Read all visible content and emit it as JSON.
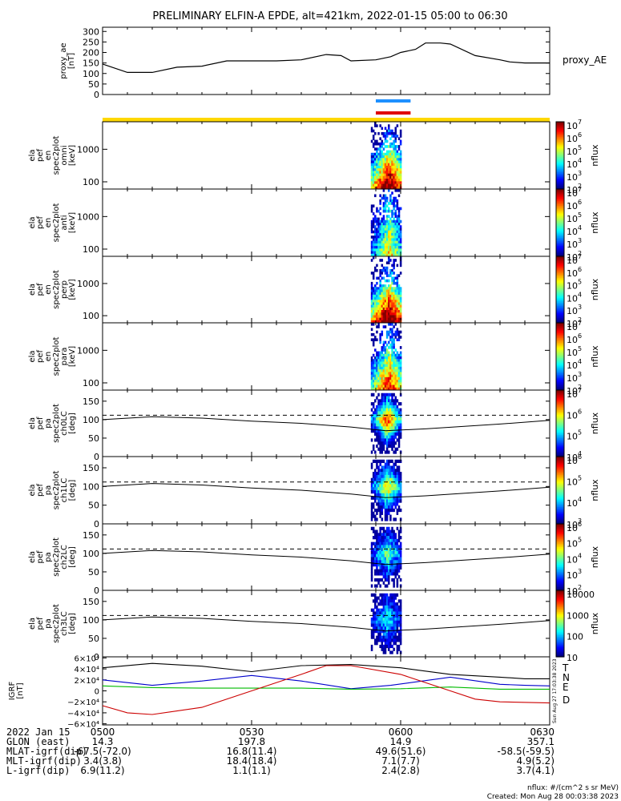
{
  "title": "PRELIMINARY ELFIN-A EPDE, alt=421km, 2022-01-15 05:00 to 06:30",
  "colors": {
    "proxy_line": "#000000",
    "bar_blue": "#1e90ff",
    "bar_red": "#e00000",
    "bar_yellow": "#ffd800",
    "igrf_T": "#000000",
    "igrf_N": "#0000cc",
    "igrf_E": "#00bb00",
    "igrf_D": "#cc0000"
  },
  "chart_data": [
    {
      "type": "line",
      "id": "proxy_ae",
      "ylabel": "proxy_ae [nT]",
      "legend": "proxy_AE",
      "ylim": [
        0,
        320
      ],
      "yticks": [
        "0",
        "50",
        "100",
        "150",
        "200",
        "250",
        "300"
      ],
      "ytick_values": [
        0,
        50,
        100,
        150,
        200,
        250,
        300
      ],
      "x_minutes": [
        0,
        5,
        10,
        15,
        20,
        25,
        30,
        35,
        40,
        45,
        48,
        50,
        55,
        58,
        60,
        63,
        65,
        68,
        70,
        75,
        80,
        82,
        85,
        90
      ],
      "values": [
        145,
        105,
        105,
        130,
        135,
        160,
        160,
        160,
        165,
        190,
        185,
        160,
        165,
        180,
        200,
        215,
        245,
        245,
        240,
        185,
        165,
        155,
        150,
        150
      ]
    },
    {
      "type": "bar",
      "id": "indicator_bars",
      "series": [
        {
          "name": "",
          "color": "bar_blue",
          "x_range_minutes": [
            55,
            62
          ]
        },
        {
          "name": "",
          "color": "bar_red",
          "x_range_minutes": [
            55,
            62
          ]
        },
        {
          "name": "",
          "color": "bar_yellow",
          "x_range_minutes": [
            0,
            90
          ]
        }
      ]
    },
    {
      "type": "heatmap",
      "id": "ela_pef_en_omni",
      "ylabel": "ela pef en spec2plot omni [keV]",
      "yscale": "log",
      "ylim": [
        60,
        7000
      ],
      "yticks": [
        "100",
        "1000"
      ],
      "ytick_values": [
        100,
        1000
      ],
      "colorbar": {
        "label": "nflux",
        "scale": "log",
        "range": [
          100,
          10000000
        ],
        "ticks": [
          "10",
          "10",
          "10",
          "10",
          "10",
          "10"
        ],
        "exponents": [
          "7",
          "6",
          "5",
          "4",
          "3",
          "2"
        ]
      },
      "x_range_minutes": [
        54,
        60
      ],
      "intensity": 0.8
    },
    {
      "type": "heatmap",
      "id": "ela_pef_en_anti",
      "ylabel": "ela pef en spec2plot anti [keV]",
      "yscale": "log",
      "ylim": [
        60,
        7000
      ],
      "yticks": [
        "100",
        "1000"
      ],
      "ytick_values": [
        100,
        1000
      ],
      "colorbar": {
        "label": "nflux",
        "scale": "log",
        "range": [
          100,
          10000000
        ],
        "ticks": [
          "10",
          "10",
          "10",
          "10",
          "10",
          "10"
        ],
        "exponents": [
          "7",
          "6",
          "5",
          "4",
          "3",
          "2"
        ]
      },
      "x_range_minutes": [
        54,
        60
      ],
      "intensity": 0.35
    },
    {
      "type": "heatmap",
      "id": "ela_pef_en_perp",
      "ylabel": "ela pef en spec2plot perp [keV]",
      "yscale": "log",
      "ylim": [
        60,
        7000
      ],
      "yticks": [
        "100",
        "1000"
      ],
      "ytick_values": [
        100,
        1000
      ],
      "colorbar": {
        "label": "nflux",
        "scale": "log",
        "range": [
          100,
          10000000
        ],
        "ticks": [
          "10",
          "10",
          "10",
          "10",
          "10",
          "10"
        ],
        "exponents": [
          "7",
          "6",
          "5",
          "4",
          "3",
          "2"
        ]
      },
      "x_range_minutes": [
        54,
        60
      ],
      "intensity": 0.85
    },
    {
      "type": "heatmap",
      "id": "ela_pef_en_para",
      "ylabel": "ela pef en spec2plot para [keV]",
      "yscale": "log",
      "ylim": [
        60,
        7000
      ],
      "yticks": [
        "100",
        "1000"
      ],
      "ytick_values": [
        100,
        1000
      ],
      "colorbar": {
        "label": "nflux",
        "scale": "log",
        "range": [
          100,
          10000000
        ],
        "ticks": [
          "10",
          "10",
          "10",
          "10",
          "10",
          "10"
        ],
        "exponents": [
          "7",
          "6",
          "5",
          "4",
          "3",
          "2"
        ]
      },
      "x_range_minutes": [
        54,
        60
      ],
      "intensity": 0.6
    },
    {
      "type": "heatmap",
      "id": "ela_pef_pa_ch0LC",
      "ylabel": "ela pef pa spec2plot ch0LC [deg]",
      "ylim": [
        0,
        180
      ],
      "yticks": [
        "0",
        "50",
        "100",
        "150"
      ],
      "ytick_values": [
        0,
        50,
        100,
        150
      ],
      "colorbar": {
        "label": "nflux",
        "scale": "log",
        "range": [
          10000,
          10000000
        ],
        "ticks": [
          "10",
          "10",
          "10",
          "10"
        ],
        "exponents": [
          "7",
          "6",
          "5",
          "4"
        ]
      },
      "x_range_minutes": [
        54,
        60
      ],
      "intensity": 0.9
    },
    {
      "type": "heatmap",
      "id": "ela_pef_pa_ch1LC",
      "ylabel": "ela pef pa spec2plot ch1LC [deg]",
      "ylim": [
        0,
        180
      ],
      "yticks": [
        "0",
        "50",
        "100",
        "150"
      ],
      "ytick_values": [
        0,
        50,
        100,
        150
      ],
      "colorbar": {
        "label": "nflux",
        "scale": "log",
        "range": [
          1000,
          1000000
        ],
        "ticks": [
          "10",
          "10",
          "10",
          "10"
        ],
        "exponents": [
          "6",
          "5",
          "4",
          "3"
        ]
      },
      "x_range_minutes": [
        54,
        60
      ],
      "intensity": 0.7
    },
    {
      "type": "heatmap",
      "id": "ela_pef_pa_ch2LC",
      "ylabel": "ela pef pa spec2plot ch2LC [deg]",
      "ylim": [
        0,
        180
      ],
      "yticks": [
        "0",
        "50",
        "100",
        "150"
      ],
      "ytick_values": [
        0,
        50,
        100,
        150
      ],
      "colorbar": {
        "label": "nflux",
        "scale": "log",
        "range": [
          100,
          1000000
        ],
        "ticks": [
          "10",
          "10",
          "10",
          "10",
          "10"
        ],
        "exponents": [
          "6",
          "5",
          "4",
          "3",
          "2"
        ]
      },
      "x_range_minutes": [
        54,
        60
      ],
      "intensity": 0.5
    },
    {
      "type": "heatmap",
      "id": "ela_pef_pa_ch3LC",
      "ylabel": "ela pef pa spec2plot ch3LC [deg]",
      "ylim": [
        0,
        180
      ],
      "yticks": [
        "0",
        "50",
        "100",
        "150"
      ],
      "ytick_values": [
        0,
        50,
        100,
        150
      ],
      "colorbar": {
        "label": "nflux",
        "scale": "log",
        "range": [
          10,
          10000
        ],
        "ticks": [
          "10000",
          "1000",
          "100",
          "10"
        ]
      },
      "x_range_minutes": [
        54,
        60
      ],
      "intensity": 0.4
    },
    {
      "type": "line",
      "id": "igrf",
      "ylabel": "IGRF [nT]",
      "ylim": [
        -62000,
        62000
      ],
      "yticks": [
        "6×10⁴",
        "4×10⁴",
        "2×10⁴",
        "0",
        "−2×10⁴",
        "−4×10⁴",
        "−6×10⁴"
      ],
      "ytick_values": [
        60000,
        40000,
        20000,
        0,
        -20000,
        -40000,
        -60000
      ],
      "series": [
        {
          "name": "T",
          "color": "igrf_T",
          "x": [
            0,
            10,
            20,
            30,
            40,
            50,
            60,
            70,
            80,
            85,
            90
          ],
          "values": [
            42000,
            50000,
            45000,
            35000,
            46000,
            48000,
            42000,
            30000,
            25000,
            22000,
            22000
          ]
        },
        {
          "name": "N",
          "color": "igrf_N",
          "x": [
            0,
            10,
            20,
            30,
            40,
            50,
            58,
            70,
            80,
            85,
            90
          ],
          "values": [
            20000,
            10000,
            18000,
            28000,
            18000,
            4000,
            10000,
            25000,
            12000,
            10000,
            9000
          ]
        },
        {
          "name": "E",
          "color": "igrf_E",
          "x": [
            0,
            10,
            20,
            30,
            40,
            50,
            60,
            70,
            80,
            90
          ],
          "values": [
            9000,
            6000,
            5000,
            5000,
            5000,
            3000,
            4000,
            7000,
            3000,
            3000
          ]
        },
        {
          "name": "D",
          "color": "igrf_D",
          "x": [
            0,
            5,
            10,
            20,
            30,
            40,
            45,
            50,
            60,
            70,
            75,
            80,
            90
          ],
          "values": [
            -27000,
            -40000,
            -43000,
            -30000,
            0,
            30000,
            46000,
            46000,
            30000,
            0,
            -15000,
            -20000,
            -22000
          ]
        }
      ]
    }
  ],
  "x_axis": {
    "tick_minutes": [
      0,
      30,
      60,
      90
    ],
    "minor_tick_minutes": [
      5,
      10,
      15,
      20,
      25,
      35,
      40,
      45,
      50,
      55,
      65,
      70,
      75,
      80,
      85
    ],
    "rows": [
      {
        "label": "2022 Jan 15",
        "values": [
          "0500",
          "0530",
          "0600",
          "0630"
        ]
      },
      {
        "label": "GLON (east)",
        "values": [
          "14.3",
          "197.8",
          "14.9",
          "357.1"
        ]
      },
      {
        "label": "MLAT-igrf(dip)",
        "values": [
          "-67.5(-72.0)",
          "16.8(11.4)",
          "49.6(51.6)",
          "-58.5(-59.5)"
        ]
      },
      {
        "label": "MLT-igrf(dip)",
        "values": [
          "3.4(3.8)",
          "18.4(18.4)",
          "7.1(7.7)",
          "4.9(5.2)"
        ]
      },
      {
        "label": "L-igrf(dip)",
        "values": [
          "6.9(11.2)",
          "1.1(1.1)",
          "2.4(2.8)",
          "3.7(4.1)"
        ]
      }
    ]
  },
  "side_note": "Sun Aug 27 17:03:38 2023",
  "footer": {
    "units": "nflux: #/(cm^2 s sr MeV)",
    "created": "Created: Mon Aug 28 00:03:38 2023"
  }
}
